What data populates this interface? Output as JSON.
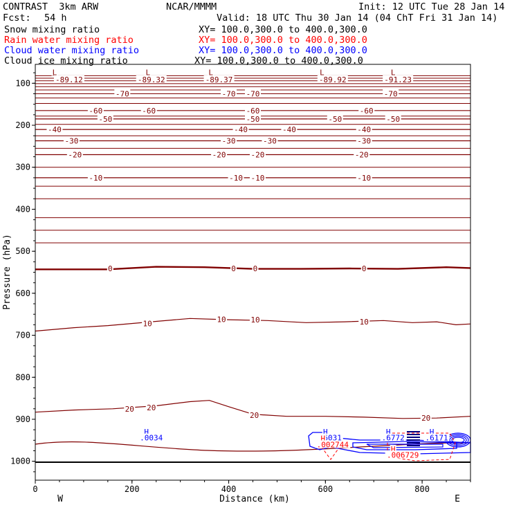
{
  "header": {
    "model_title": "CONTRAST  3km ARW",
    "org": "NCAR/MMMM",
    "init": "Init: 12 UTC Tue 28 Jan 14",
    "fcst_label": "Fcst:",
    "fcst_value": "54 h",
    "valid": "Valid: 18 UTC Thu 30 Jan 14 (04 ChT Fri 31 Jan 14)"
  },
  "legend": [
    {
      "label": "Snow mixing ratio",
      "xy": "XY= 100.0,300.0 to 400.0,300.0",
      "color": "#000000"
    },
    {
      "label": "Rain water mixing ratio",
      "xy": "XY= 100.0,300.0 to 400.0,300.0",
      "color": "#ff0000"
    },
    {
      "label": "Cloud water mixing ratio",
      "xy": "XY= 100.0,300.0 to 400.0,300.0",
      "color": "#0000ff"
    },
    {
      "label": "Cloud ice mixing ratio",
      "xy": "XY= 100.0,300.0 to 400.0,300.0",
      "color": "#000000"
    }
  ],
  "chart_data": {
    "type": "contour",
    "xlabel": "Distance (km)",
    "ylabel": "Pressure (hPa)",
    "xlim": [
      0,
      900
    ],
    "ylim": [
      1045,
      55
    ],
    "xticks": [
      "0",
      "200",
      "400",
      "600",
      "800"
    ],
    "xtick_values": [
      0,
      200,
      400,
      600,
      800
    ],
    "yticks": [
      "100",
      "200",
      "300",
      "400",
      "500",
      "600",
      "700",
      "800",
      "900",
      "1000"
    ],
    "ytick_values": [
      100,
      200,
      300,
      400,
      500,
      600,
      700,
      800,
      900,
      1000
    ],
    "west_label": "W",
    "east_label": "E",
    "temperature_color": "#800000",
    "temperature_contours": [
      {
        "level": -60,
        "pts": [
          [
            0,
            165
          ],
          [
            900,
            165
          ]
        ]
      },
      {
        "level": -50,
        "pts": [
          [
            0,
            185
          ],
          [
            900,
            185
          ]
        ]
      },
      {
        "level": -40,
        "pts": [
          [
            0,
            210
          ],
          [
            900,
            210
          ]
        ]
      },
      {
        "level": -30,
        "pts": [
          [
            0,
            237
          ],
          [
            900,
            237
          ]
        ]
      },
      {
        "level": -20,
        "pts": [
          [
            0,
            270
          ],
          [
            900,
            270
          ]
        ]
      },
      {
        "level": -10,
        "pts": [
          [
            0,
            325
          ],
          [
            900,
            325
          ]
        ]
      },
      {
        "level": 0,
        "thick": true,
        "pts": [
          [
            0,
            543
          ],
          [
            150,
            543
          ],
          [
            250,
            537
          ],
          [
            350,
            538
          ],
          [
            450,
            542
          ],
          [
            550,
            542
          ],
          [
            650,
            541
          ],
          [
            750,
            542
          ],
          [
            850,
            538
          ],
          [
            900,
            540
          ]
        ]
      },
      {
        "level": 10,
        "pts": [
          [
            0,
            690
          ],
          [
            80,
            682
          ],
          [
            150,
            677
          ],
          [
            250,
            667
          ],
          [
            320,
            660
          ],
          [
            400,
            663
          ],
          [
            480,
            665
          ],
          [
            560,
            670
          ],
          [
            640,
            668
          ],
          [
            720,
            665
          ],
          [
            780,
            670
          ],
          [
            830,
            668
          ],
          [
            870,
            675
          ],
          [
            900,
            673
          ]
        ]
      },
      {
        "level": 20,
        "pts": [
          [
            0,
            883
          ],
          [
            80,
            878
          ],
          [
            160,
            875
          ],
          [
            250,
            868
          ],
          [
            320,
            858
          ],
          [
            360,
            855
          ],
          [
            400,
            870
          ],
          [
            450,
            888
          ],
          [
            520,
            893
          ],
          [
            600,
            893
          ],
          [
            680,
            895
          ],
          [
            760,
            898
          ],
          [
            830,
            897
          ],
          [
            900,
            893
          ]
        ]
      }
    ],
    "temperature_labels": [
      {
        "text": "-89.12",
        "x": 70,
        "y": 91
      },
      {
        "text": "-89.32",
        "x": 240,
        "y": 91
      },
      {
        "text": "-89.37",
        "x": 380,
        "y": 91
      },
      {
        "text": "-89.92",
        "x": 615,
        "y": 91
      },
      {
        "text": "-91.23",
        "x": 750,
        "y": 91
      },
      {
        "text": "-70",
        "x": 180,
        "y": 125
      },
      {
        "text": "-70",
        "x": 400,
        "y": 125
      },
      {
        "text": "-70",
        "x": 450,
        "y": 125
      },
      {
        "text": "-70",
        "x": 735,
        "y": 125
      },
      {
        "text": "-60",
        "x": 125,
        "y": 165
      },
      {
        "text": "-60",
        "x": 235,
        "y": 165
      },
      {
        "text": "-60",
        "x": 450,
        "y": 165
      },
      {
        "text": "-60",
        "x": 685,
        "y": 165
      },
      {
        "text": "-50",
        "x": 145,
        "y": 185
      },
      {
        "text": "-50",
        "x": 450,
        "y": 185
      },
      {
        "text": "-50",
        "x": 620,
        "y": 185
      },
      {
        "text": "-50",
        "x": 740,
        "y": 185
      },
      {
        "text": "-40",
        "x": 40,
        "y": 210
      },
      {
        "text": "-40",
        "x": 425,
        "y": 210
      },
      {
        "text": "-40",
        "x": 525,
        "y": 210
      },
      {
        "text": "-40",
        "x": 680,
        "y": 210
      },
      {
        "text": "-30",
        "x": 75,
        "y": 237
      },
      {
        "text": "-30",
        "x": 400,
        "y": 237
      },
      {
        "text": "-30",
        "x": 485,
        "y": 237
      },
      {
        "text": "-30",
        "x": 680,
        "y": 237
      },
      {
        "text": "-20",
        "x": 82,
        "y": 270
      },
      {
        "text": "-20",
        "x": 380,
        "y": 270
      },
      {
        "text": "-20",
        "x": 460,
        "y": 270
      },
      {
        "text": "-20",
        "x": 675,
        "y": 270
      },
      {
        "text": "-10",
        "x": 125,
        "y": 325
      },
      {
        "text": "-10",
        "x": 415,
        "y": 325
      },
      {
        "text": "-10",
        "x": 460,
        "y": 325
      },
      {
        "text": "-10",
        "x": 680,
        "y": 325
      },
      {
        "text": "0",
        "x": 155,
        "y": 541
      },
      {
        "text": "0",
        "x": 410,
        "y": 541
      },
      {
        "text": "0",
        "x": 455,
        "y": 541
      },
      {
        "text": "0",
        "x": 680,
        "y": 541
      },
      {
        "text": "10",
        "x": 232,
        "y": 672
      },
      {
        "text": "10",
        "x": 385,
        "y": 662
      },
      {
        "text": "10",
        "x": 455,
        "y": 663
      },
      {
        "text": "10",
        "x": 680,
        "y": 668
      },
      {
        "text": "20",
        "x": 195,
        "y": 875
      },
      {
        "text": "20",
        "x": 240,
        "y": 872
      },
      {
        "text": "20",
        "x": 453,
        "y": 890
      },
      {
        "text": "20",
        "x": 808,
        "y": 897
      }
    ],
    "low_markers": [
      {
        "text": "L",
        "x": 40,
        "y": 74
      },
      {
        "text": "L",
        "x": 233,
        "y": 74
      },
      {
        "text": "L",
        "x": 363,
        "y": 74
      },
      {
        "text": "L",
        "x": 593,
        "y": 74
      },
      {
        "text": "L",
        "x": 740,
        "y": 74
      }
    ],
    "cloud_water_highs": [
      {
        "text": "H",
        "x": 230,
        "y": 930
      },
      {
        "text": ".0034",
        "x": 240,
        "y": 944
      },
      {
        "text": "H",
        "x": 600,
        "y": 930
      },
      {
        "text": ".6031",
        "x": 610,
        "y": 944
      },
      {
        "text": "H",
        "x": 730,
        "y": 930
      },
      {
        "text": ".6772",
        "x": 740,
        "y": 944
      },
      {
        "text": "H",
        "x": 820,
        "y": 930
      },
      {
        "text": ".6171",
        "x": 830,
        "y": 944
      }
    ],
    "rain_highs": [
      {
        "text": "H",
        "x": 595,
        "y": 945
      },
      {
        "text": ".002744",
        "x": 615,
        "y": 960
      },
      {
        "text": "H",
        "x": 740,
        "y": 971
      },
      {
        "text": ".006729",
        "x": 760,
        "y": 985
      }
    ]
  }
}
